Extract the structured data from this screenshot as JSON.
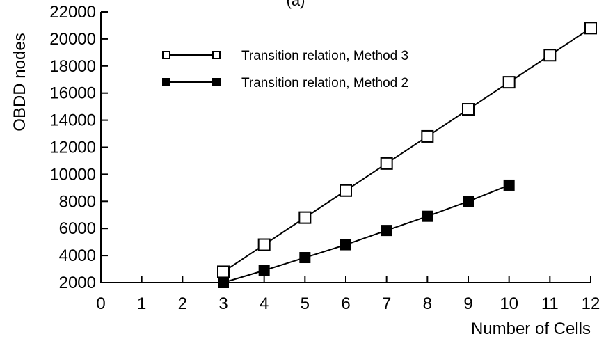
{
  "chart_data": {
    "type": "line",
    "panel_label": "(a)",
    "xlabel": "Number of Cells",
    "ylabel": "OBDD nodes",
    "xlim": [
      0,
      12
    ],
    "ylim": [
      2000,
      22000
    ],
    "x_ticks": [
      0,
      1,
      2,
      3,
      4,
      5,
      6,
      7,
      8,
      9,
      10,
      11,
      12
    ],
    "y_ticks": [
      2000,
      4000,
      6000,
      8000,
      10000,
      12000,
      14000,
      16000,
      18000,
      20000,
      22000
    ],
    "grid": false,
    "legend_position": "top-center",
    "series": [
      {
        "name": "Transition relation, Method 3",
        "marker": "open-square",
        "color": "#000000",
        "x": [
          3,
          4,
          5,
          6,
          7,
          8,
          9,
          10,
          11,
          12
        ],
        "y": [
          2800,
          4800,
          6800,
          8800,
          10800,
          12800,
          14800,
          16800,
          18800,
          20800
        ]
      },
      {
        "name": "Transition relation, Method 2",
        "marker": "filled-square",
        "color": "#000000",
        "x": [
          3,
          4,
          5,
          6,
          7,
          8,
          9,
          10
        ],
        "y": [
          2000,
          2900,
          3850,
          4800,
          5850,
          6900,
          8000,
          9200
        ]
      }
    ]
  }
}
